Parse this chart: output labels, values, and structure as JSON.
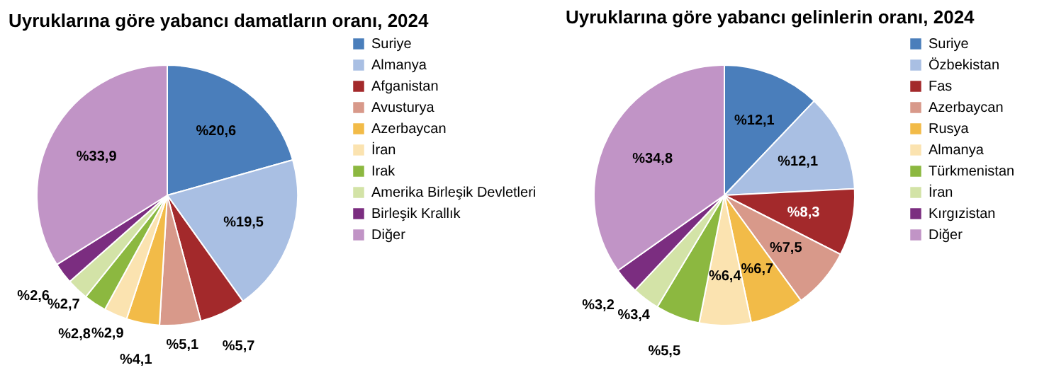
{
  "chart_data": [
    {
      "type": "pie",
      "title": "Uyruklarına göre yabancı damatların oranı, 2024",
      "legend": "right",
      "categories": [
        "Suriye",
        "Almanya",
        "Afganistan",
        "Avusturya",
        "Azerbaycan",
        "İran",
        "Irak",
        "Amerika Birleşik Devletleri",
        "Birleşik Krallık",
        "Diğer"
      ],
      "values": [
        20.6,
        19.5,
        5.7,
        5.1,
        4.1,
        2.9,
        2.8,
        2.7,
        2.6,
        33.9
      ],
      "value_labels": [
        "%20,6",
        "%19,5",
        "%5,7",
        "%5,1",
        "%4,1",
        "%2,9",
        "%2,8",
        "%2,7",
        "%2,6",
        "%33,9"
      ],
      "colors": [
        "#4a7ebb",
        "#a9bfe3",
        "#a3292b",
        "#d8998a",
        "#f2bb48",
        "#fbe3b0",
        "#8cb840",
        "#d3e3a7",
        "#7b2d80",
        "#c194c6"
      ]
    },
    {
      "type": "pie",
      "title": "Uyruklarına göre yabancı gelinlerin oranı, 2024",
      "legend": "right",
      "categories": [
        "Suriye",
        "Özbekistan",
        "Fas",
        "Azerbaycan",
        "Rusya",
        "Almanya",
        "Türkmenistan",
        "İran",
        "Kırgızistan",
        "Diğer"
      ],
      "values": [
        12.1,
        12.1,
        8.3,
        7.5,
        6.7,
        6.4,
        5.5,
        3.4,
        3.2,
        34.8
      ],
      "value_labels": [
        "%12,1",
        "%12,1",
        "%8,3",
        "%7,5",
        "%6,7",
        "%6,4",
        "%5,5",
        "%3,4",
        "%3,2",
        "%34,8"
      ],
      "colors": [
        "#4a7ebb",
        "#a9bfe3",
        "#a3292b",
        "#d8998a",
        "#f2bb48",
        "#fbe3b0",
        "#8cb840",
        "#d3e3a7",
        "#7b2d80",
        "#c194c6"
      ]
    }
  ]
}
